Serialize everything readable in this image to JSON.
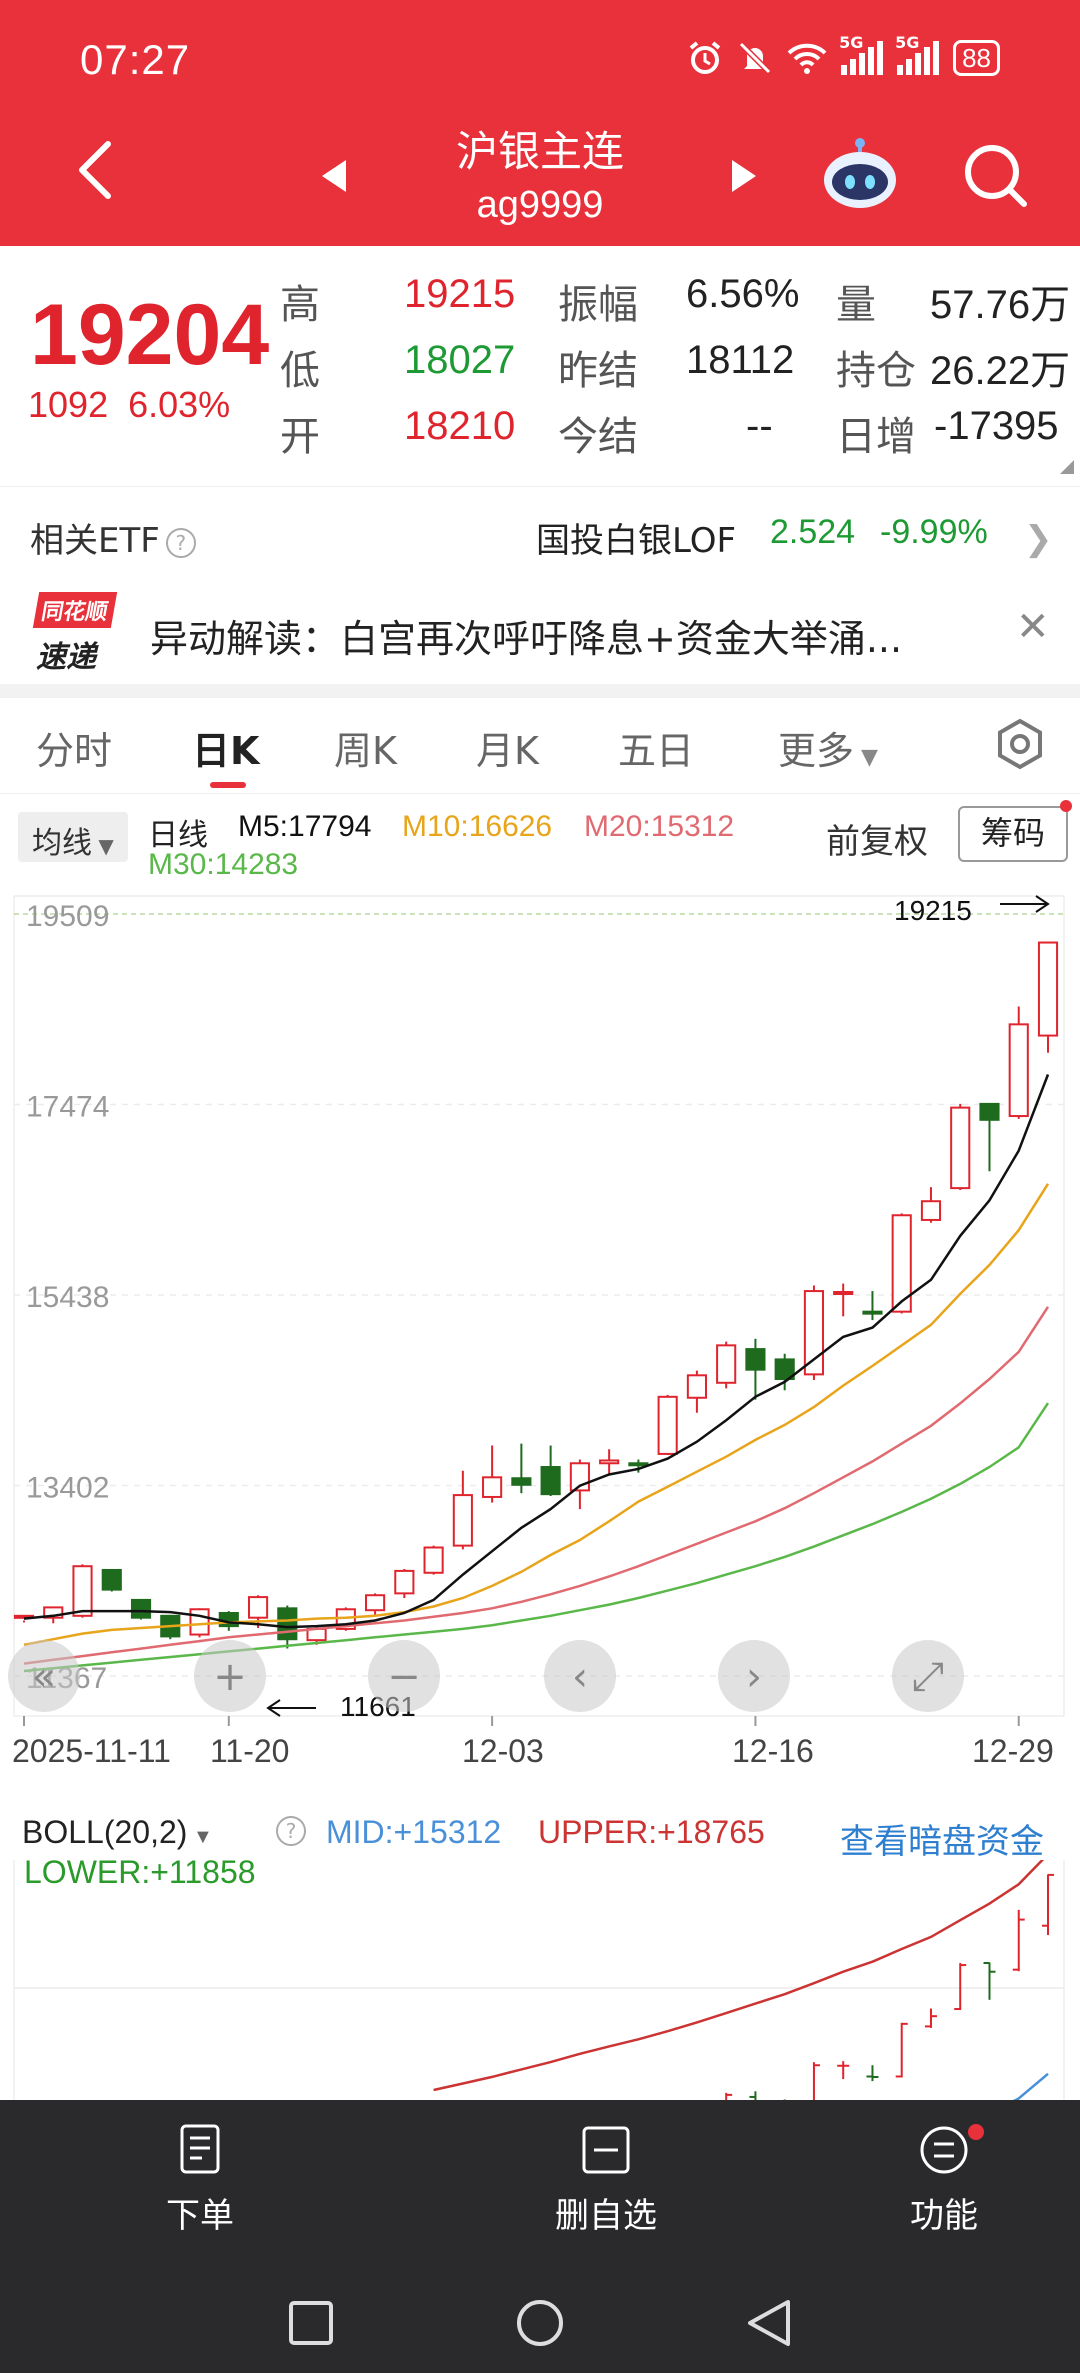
{
  "status": {
    "time": "07:27",
    "battery": "88",
    "net1": "5G",
    "net2": "5G"
  },
  "header": {
    "title": "沪银主连",
    "code": "ag9999"
  },
  "quote": {
    "last": "19204",
    "change": "1092",
    "change_pct": "6.03%",
    "rows": [
      {
        "l1": "高",
        "v1": "19215",
        "l2": "振幅",
        "v2": "6.56%",
        "l3": "量",
        "v3": "57.76万"
      },
      {
        "l1": "低",
        "v1": "18027",
        "l2": "昨结",
        "v2": "18112",
        "l3": "持仓",
        "v3": "26.22万"
      },
      {
        "l1": "开",
        "v1": "18210",
        "l2": "今结",
        "v2": "--",
        "l3": "日增",
        "v3": "-17395"
      }
    ]
  },
  "etf": {
    "label": "相关ETF",
    "name": "国投白银LOF",
    "price": "2.524",
    "pct": "-9.99%"
  },
  "news": {
    "logo1": "同花顺",
    "logo2": "速递",
    "text": "异动解读：白宫再次呼吁降息+资金大举涌..."
  },
  "tabs": [
    "分时",
    "日K",
    "周K",
    "月K",
    "五日",
    "更多"
  ],
  "ma": {
    "select": "均线",
    "label": "日线",
    "m5": "M5:17794",
    "m10": "M10:16626",
    "m20": "M20:15312",
    "m30": "M30:14283",
    "adjust": "前复权",
    "chip": "筹码"
  },
  "colors": {
    "header": "#e8313a",
    "up": "#e0242e",
    "down": "#1e6b1e",
    "ma5": "#111111",
    "ma10": "#e8a41a",
    "ma20": "#e06a70",
    "ma30": "#5ab84a",
    "boll_mid": "#4a90d9",
    "boll_upper": "#cc3333"
  },
  "chart_data": {
    "type": "candlestick",
    "ylim": [
      11367,
      19509
    ],
    "y_ticks": [
      "19509",
      "17474",
      "15438",
      "13402",
      "11367"
    ],
    "x_ticks": [
      "2025-11-11",
      "11-20",
      "12-03",
      "12-16",
      "12-29"
    ],
    "max_label": "19215",
    "min_label": "11661",
    "candles": [
      [
        11990,
        12010,
        11960,
        11940,
        12040
      ],
      [
        11990,
        12100,
        11930,
        12110,
        12130
      ],
      [
        12010,
        12540,
        11990,
        12560,
        12570
      ],
      [
        12500,
        12290,
        12270,
        12460,
        12520
      ],
      [
        12180,
        11990,
        11970,
        12190,
        12200
      ],
      [
        12010,
        11790,
        11760,
        12020,
        12030
      ],
      [
        11810,
        12080,
        11780,
        12090,
        12100
      ],
      [
        12040,
        11900,
        11850,
        12060,
        12080
      ],
      [
        11990,
        12210,
        11880,
        12230,
        12240
      ],
      [
        12090,
        11760,
        11661,
        12120,
        12140
      ],
      [
        11750,
        11870,
        11700,
        11900,
        11910
      ],
      [
        11870,
        12080,
        11850,
        12100,
        12110
      ],
      [
        12070,
        12230,
        12010,
        12250,
        12270
      ],
      [
        12250,
        12490,
        12200,
        12510,
        12520
      ],
      [
        12470,
        12740,
        12450,
        12760,
        12770
      ],
      [
        12760,
        13300,
        12720,
        13560,
        13580
      ],
      [
        13280,
        13490,
        13220,
        13830,
        13840
      ],
      [
        13480,
        13410,
        13320,
        13850,
        13860
      ],
      [
        13600,
        13310,
        13290,
        13830,
        13850
      ],
      [
        13350,
        13640,
        13150,
        13680,
        13700
      ],
      [
        13640,
        13670,
        13520,
        13790,
        13800
      ],
      [
        13640,
        13620,
        13540,
        13680,
        13700
      ],
      [
        13740,
        14350,
        13730,
        14370,
        14380
      ],
      [
        14340,
        14580,
        14180,
        14630,
        14650
      ],
      [
        14500,
        14900,
        14440,
        14940,
        14960
      ],
      [
        14860,
        14640,
        14320,
        14970,
        15150
      ],
      [
        14750,
        14540,
        14420,
        14810,
        14830
      ],
      [
        14590,
        15480,
        14530,
        15540,
        15560
      ],
      [
        15470,
        15470,
        15210,
        15560,
        15570
      ],
      [
        15260,
        15250,
        15170,
        15480,
        15490
      ],
      [
        15260,
        16290,
        15240,
        16310,
        16320
      ],
      [
        16240,
        16440,
        16210,
        16590,
        16600
      ],
      [
        16580,
        17440,
        16560,
        17480,
        17490
      ],
      [
        17480,
        17310,
        16760,
        17490,
        17500
      ],
      [
        17350,
        18330,
        17320,
        18520,
        18530
      ],
      [
        18210,
        19204,
        18027,
        19215,
        19230
      ]
    ],
    "ma5": [
      11980,
      12010,
      12060,
      12060,
      12060,
      12050,
      12010,
      11940,
      11920,
      11890,
      11900,
      11920,
      11960,
      12040,
      12180,
      12450,
      12700,
      12950,
      13150,
      13400,
      13520,
      13580,
      13690,
      13870,
      14100,
      14350,
      14510,
      14750,
      14990,
      15090,
      15370,
      15600,
      16070,
      16450,
      16980,
      17794
    ],
    "ma10": [
      11700,
      11760,
      11820,
      11860,
      11880,
      11900,
      11920,
      11940,
      11950,
      11960,
      11980,
      11990,
      12010,
      12050,
      12110,
      12200,
      12330,
      12480,
      12660,
      12820,
      13020,
      13230,
      13390,
      13550,
      13710,
      13890,
      14050,
      14240,
      14470,
      14680,
      14900,
      15120,
      15450,
      15760,
      16130,
      16626
    ],
    "ma20": [
      11500,
      11540,
      11580,
      11620,
      11660,
      11700,
      11740,
      11780,
      11810,
      11840,
      11870,
      11900,
      11930,
      11960,
      12000,
      12040,
      12090,
      12160,
      12240,
      12330,
      12430,
      12540,
      12660,
      12780,
      12900,
      13020,
      13160,
      13320,
      13490,
      13660,
      13850,
      14040,
      14280,
      14540,
      14830,
      15312
    ],
    "ma30": [
      11420,
      11450,
      11480,
      11510,
      11540,
      11570,
      11600,
      11630,
      11660,
      11690,
      11720,
      11750,
      11780,
      11810,
      11840,
      11870,
      11910,
      11960,
      12010,
      12070,
      12130,
      12200,
      12280,
      12360,
      12450,
      12540,
      12640,
      12750,
      12870,
      12990,
      13120,
      13260,
      13420,
      13600,
      13810,
      14283
    ]
  },
  "boll": {
    "select": "BOLL(20,2)",
    "mid": "MID:+15312",
    "upper": "UPPER:+18765",
    "lower": "LOWER:+11858",
    "link": "查看暗盘资金"
  },
  "bottom": {
    "order": "下单",
    "remove": "删自选",
    "func": "功能"
  }
}
